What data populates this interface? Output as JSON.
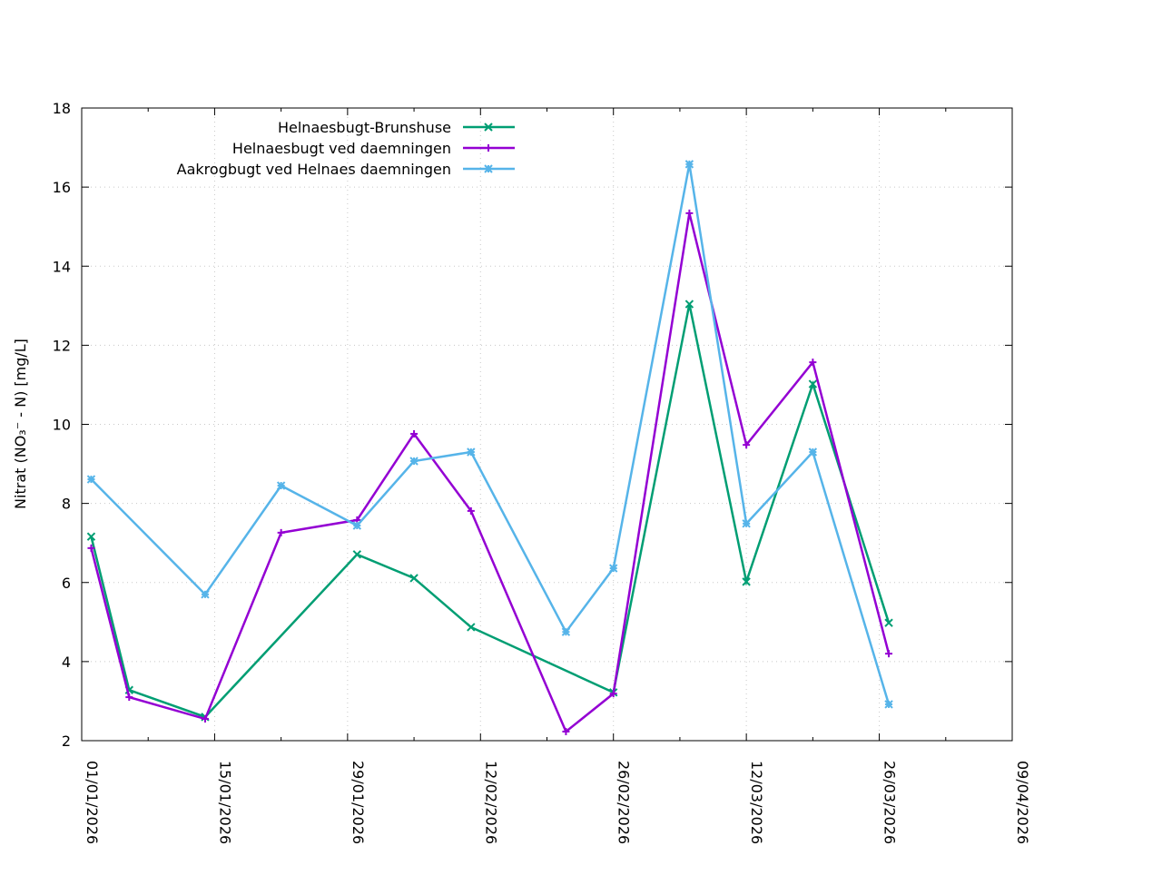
{
  "chart_data": {
    "type": "line",
    "title": "",
    "xlabel": "",
    "ylabel": "Nitrat (NO₃⁻ - N) [mg/L]",
    "ylim": [
      2,
      18
    ],
    "yticks": [
      2,
      4,
      6,
      8,
      10,
      12,
      14,
      16,
      18
    ],
    "xlim": [
      "2026-01-01",
      "2026-04-09"
    ],
    "xtick_labels": [
      "01/01/2026",
      "15/01/2026",
      "29/01/2026",
      "12/02/2026",
      "26/02/2026",
      "12/03/2026",
      "26/03/2026",
      "09/04/2026"
    ],
    "grid": true,
    "legend_position": "top-left",
    "series": [
      {
        "name": "Helnaesbugt-Brunshuse",
        "color": "#009e73",
        "marker": "x",
        "x": [
          "2026-01-02",
          "2026-01-06",
          "2026-01-14",
          "2026-01-30",
          "2026-02-05",
          "2026-02-11",
          "2026-02-26",
          "2026-03-06",
          "2026-03-12",
          "2026-03-19",
          "2026-03-27"
        ],
        "values": [
          7.16,
          3.28,
          2.6,
          6.71,
          6.11,
          4.87,
          3.22,
          13.04,
          6.02,
          11.02,
          4.98
        ]
      },
      {
        "name": "Helnaesbugt ved daemningen",
        "color": "#9400d3",
        "marker": "+",
        "x": [
          "2026-01-02",
          "2026-01-06",
          "2026-01-14",
          "2026-01-22",
          "2026-01-30",
          "2026-02-05",
          "2026-02-11",
          "2026-02-21",
          "2026-02-26",
          "2026-03-06",
          "2026-03-12",
          "2026-03-19",
          "2026-03-27"
        ],
        "values": [
          6.87,
          3.1,
          2.55,
          7.26,
          7.58,
          9.76,
          7.81,
          2.23,
          3.19,
          15.34,
          9.48,
          11.57,
          4.2
        ]
      },
      {
        "name": "Aakrogbugt ved Helnaes daemningen",
        "color": "#56b4e9",
        "marker": "*",
        "x": [
          "2026-01-02",
          "2026-01-14",
          "2026-01-22",
          "2026-01-30",
          "2026-02-05",
          "2026-02-11",
          "2026-02-21",
          "2026-02-26",
          "2026-03-06",
          "2026-03-12",
          "2026-03-19",
          "2026-03-27"
        ],
        "values": [
          8.61,
          5.7,
          8.45,
          7.44,
          9.07,
          9.3,
          4.75,
          6.36,
          16.58,
          7.49,
          9.3,
          2.92
        ]
      }
    ]
  }
}
